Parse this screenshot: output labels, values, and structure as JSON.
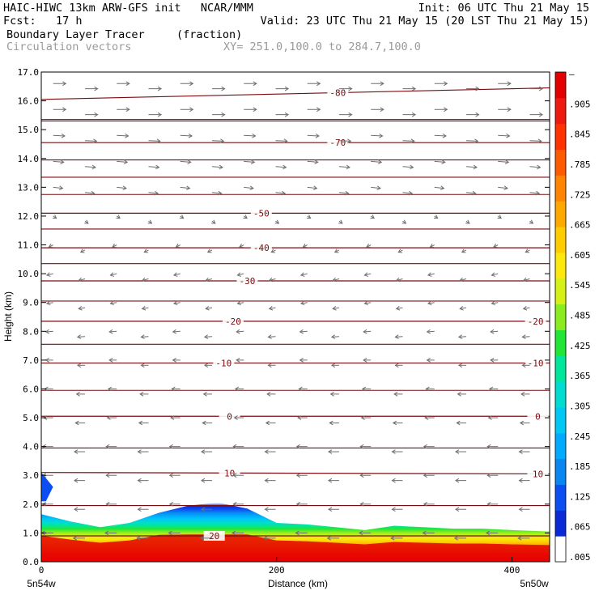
{
  "header": {
    "line1_left": "HAIC-HIWC 13km ARW-GFS init   NCAR/MMM",
    "line1_right": "Init: 06 UTC Thu 21 May 15",
    "line2_left": "Fcst:   17 h",
    "line2_right": "Valid: 23 UTC Thu 21 May 15 (20 LST Thu 21 May 15)",
    "field_name": "Boundary Layer Tracer",
    "field_units": "(fraction)",
    "vectors_label": "Circulation vectors",
    "xy_range": "XY= 251.0,100.0 to 284.7,100.0"
  },
  "chart_data": {
    "type": "heatmap",
    "title": "Boundary Layer Tracer",
    "units": "(fraction)",
    "xlabel": "Distance (km)",
    "ylabel": "Height (km)",
    "xlim": [
      0,
      432
    ],
    "ylim": [
      0.0,
      17.0
    ],
    "x_ticks": [
      "0",
      "200",
      "400"
    ],
    "x_tick_values": [
      0,
      200,
      400
    ],
    "x_end_labels": [
      "5n54w",
      "5n50w"
    ],
    "y_ticks": [
      "0.0",
      "1.0",
      "2.0",
      "3.0",
      "4.0",
      "5.0",
      "6.0",
      "7.0",
      "8.0",
      "9.0",
      "10.0",
      "11.0",
      "12.0",
      "13.0",
      "14.0",
      "15.0",
      "16.0",
      "17.0"
    ],
    "colorbar": {
      "labels": [
        ".005",
        ".065",
        ".125",
        ".185",
        ".245",
        ".305",
        ".365",
        ".425",
        ".485",
        ".545",
        ".605",
        ".665",
        ".725",
        ".785",
        ".845",
        ".905",
        "–"
      ],
      "colors": [
        "#ffffff",
        "#0a2ad8",
        "#0c4ef2",
        "#0a86f2",
        "#00aaff",
        "#00c8f4",
        "#00dcd0",
        "#00e69a",
        "#22e636",
        "#8aec1e",
        "#d4f014",
        "#fce80c",
        "#ffcc00",
        "#ffa800",
        "#ff8400",
        "#ff5a00",
        "#ff3200",
        "#ee1a10",
        "#e40000"
      ]
    },
    "tracer_top_profile": {
      "x_km": [
        0,
        25,
        50,
        75,
        100,
        125,
        150,
        175,
        200,
        225,
        250,
        275,
        300,
        325,
        350,
        375,
        400,
        432
      ],
      "height_km": [
        1.65,
        1.4,
        1.2,
        1.35,
        1.7,
        1.95,
        2.05,
        1.85,
        1.35,
        1.3,
        1.2,
        1.1,
        1.25,
        1.2,
        1.15,
        1.15,
        1.1,
        1.05
      ]
    },
    "corner_blob": {
      "x_km": [
        0,
        10
      ],
      "height_km": [
        2.1,
        3.1
      ]
    },
    "temperature_contours": {
      "units": "deg C",
      "color": "#7a0c10",
      "lines": [
        {
          "label": "20",
          "heights_km": [
            0.9,
            0.9
          ],
          "label_x_km": [
            147
          ]
        },
        {
          "label": "10",
          "heights_km": [
            3.1,
            3.05
          ],
          "label_x_km": [
            160,
            422
          ]
        },
        {
          "label": "0",
          "heights_km": [
            5.05,
            5.05
          ],
          "label_x_km": [
            160,
            422
          ]
        },
        {
          "label": "-10",
          "heights_km": [
            6.9,
            6.9
          ],
          "label_x_km": [
            155,
            420
          ]
        },
        {
          "label": "-20",
          "heights_km": [
            8.35,
            8.35
          ],
          "label_x_km": [
            163,
            420
          ]
        },
        {
          "label": "-30",
          "heights_km": [
            9.75,
            9.75
          ],
          "label_x_km": [
            175
          ]
        },
        {
          "label": "-40",
          "heights_km": [
            10.9,
            10.9
          ],
          "label_x_km": [
            187
          ]
        },
        {
          "label": "-50",
          "heights_km": [
            12.1,
            12.1
          ],
          "label_x_km": [
            187
          ]
        },
        {
          "label": "-70",
          "heights_km": [
            14.55,
            14.55
          ],
          "label_x_km": [
            252
          ]
        },
        {
          "label": "-80",
          "heights_km": [
            16.05,
            16.45
          ],
          "label_x_km": [
            252
          ]
        }
      ],
      "unlabeled_heights_km": [
        1.95,
        3.95,
        5.95,
        7.55,
        9.05,
        10.35,
        11.55,
        12.75,
        13.35,
        13.95,
        15.3,
        15.35
      ]
    },
    "vectors": {
      "color": "#6e6e6e",
      "x_km": [
        6,
        33,
        60,
        87,
        114,
        141,
        168,
        195,
        222,
        249,
        276,
        303,
        330,
        357,
        384,
        411
      ],
      "levels": [
        {
          "height_km": 16.6,
          "u": 12,
          "w": 0
        },
        {
          "height_km": 15.7,
          "u": 12,
          "w": 0
        },
        {
          "height_km": 14.8,
          "u": 11,
          "w": -0.5
        },
        {
          "height_km": 13.9,
          "u": 10,
          "w": -0.8
        },
        {
          "height_km": 13.0,
          "u": 9,
          "w": -1
        },
        {
          "height_km": 12.0,
          "u": 3,
          "w": -2
        },
        {
          "height_km": 11.0,
          "u": -4,
          "w": -2
        },
        {
          "height_km": 10.0,
          "u": -6,
          "w": -1.5
        },
        {
          "height_km": 9.0,
          "u": -6,
          "w": -1
        },
        {
          "height_km": 8.0,
          "u": -7,
          "w": -0.5
        },
        {
          "height_km": 7.0,
          "u": -7,
          "w": 0
        },
        {
          "height_km": 6.0,
          "u": -8,
          "w": 0
        },
        {
          "height_km": 5.0,
          "u": -9,
          "w": 0
        },
        {
          "height_km": 4.0,
          "u": -10,
          "w": 0
        },
        {
          "height_km": 3.0,
          "u": -10,
          "w": 0
        },
        {
          "height_km": 2.0,
          "u": -10,
          "w": 0
        },
        {
          "height_km": 1.0,
          "u": -11,
          "w": 0
        }
      ]
    }
  }
}
